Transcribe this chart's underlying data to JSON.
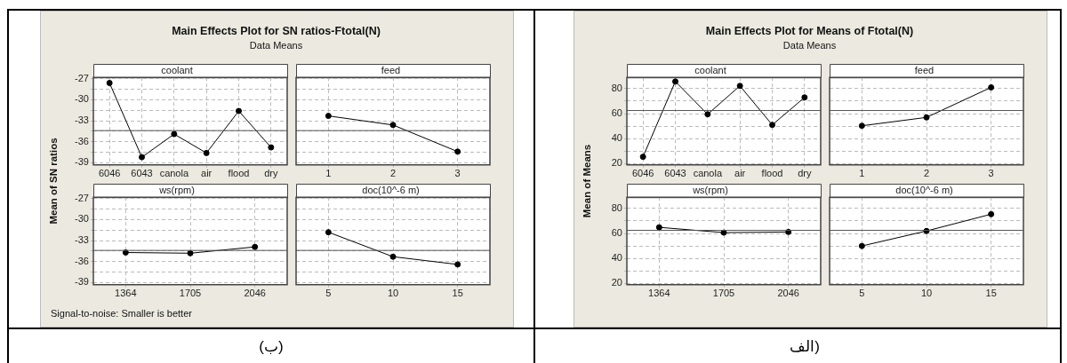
{
  "chart_data": [
    {
      "type": "line",
      "title": "Main Effects Plot for SN ratios-Ftotal(N)",
      "subtitle": "Data Means",
      "ylabel": "Mean of SN ratios",
      "annotations": [
        "Signal-to-noise: Smaller is better",
        "(ب)"
      ],
      "xlabel": "coolant",
      "categories": [
        "6046",
        "6043",
        "canola",
        "air",
        "flood",
        "dry"
      ],
      "values": [
        -27.6,
        -38.2,
        -34.9,
        -37.6,
        -31.6,
        -36.8
      ],
      "ylim": [
        -39.3,
        -26.8
      ],
      "yticks": [
        -39,
        {
          "value": -37.5,
          "label": null
        },
        -36,
        {
          "value": -34.5,
          "label": null
        },
        -33,
        {
          "value": -31.5,
          "label": null
        },
        -30,
        {
          "value": -28.5,
          "label": null
        },
        -27
      ],
      "ref_lines": [
        {
          "axis": "y",
          "value": -34.4
        }
      ],
      "grid": true,
      "marker": "circle"
    },
    {
      "type": "line",
      "xlabel": "feed",
      "categories": [
        "1",
        "2",
        "3"
      ],
      "values": [
        -32.3,
        -33.6,
        -37.4
      ],
      "ylim": [
        -39.3,
        -26.8
      ],
      "yticks": [
        -39,
        {
          "value": -37.5,
          "label": null
        },
        -36,
        {
          "value": -34.5,
          "label": null
        },
        -33,
        {
          "value": -31.5,
          "label": null
        },
        -30,
        {
          "value": -28.5,
          "label": null
        },
        -27
      ],
      "ref_lines": [
        {
          "axis": "y",
          "value": -34.4
        }
      ],
      "grid": true,
      "marker": "circle",
      "tick_labels": "x"
    },
    {
      "type": "line",
      "xlabel": "ws(rpm)",
      "categories": [
        "1364",
        "1705",
        "2046"
      ],
      "values": [
        -34.7,
        -34.8,
        -33.9
      ],
      "ylim": [
        -39.3,
        -26.8
      ],
      "yticks": [
        -39,
        {
          "value": -37.5,
          "label": null
        },
        -36,
        {
          "value": -34.5,
          "label": null
        },
        -33,
        {
          "value": -31.5,
          "label": null
        },
        -30,
        {
          "value": -28.5,
          "label": null
        },
        -27
      ],
      "ref_lines": [
        {
          "axis": "y",
          "value": -34.4
        }
      ],
      "grid": true,
      "marker": "circle"
    },
    {
      "type": "line",
      "xlabel": "doc(10^-6 m)",
      "categories": [
        "5",
        "10",
        "15"
      ],
      "values": [
        -31.8,
        -35.3,
        -36.4
      ],
      "ylim": [
        -39.3,
        -26.8
      ],
      "yticks": [
        -39,
        {
          "value": -37.5,
          "label": null
        },
        -36,
        {
          "value": -34.5,
          "label": null
        },
        -33,
        {
          "value": -31.5,
          "label": null
        },
        -30,
        {
          "value": -28.5,
          "label": null
        },
        -27
      ],
      "ref_lines": [
        {
          "axis": "y",
          "value": -34.4
        }
      ],
      "grid": true,
      "marker": "circle",
      "tick_labels": "x"
    },
    {
      "type": "line",
      "title": "Main Effects Plot for Means of Ftotal(N)",
      "subtitle": "Data Means",
      "ylabel": "Mean of Means",
      "annotations": [
        "الف)"
      ],
      "xlabel": "coolant",
      "categories": [
        "6046",
        "6043",
        "canola",
        "air",
        "flood",
        "dry"
      ],
      "values": [
        25.5,
        85.7,
        59.5,
        82.2,
        51,
        73
      ],
      "ylim": [
        19,
        89
      ],
      "yticks": [
        20,
        {
          "value": 30,
          "label": null
        },
        40,
        {
          "value": 50,
          "label": null
        },
        60,
        {
          "value": 70,
          "label": null
        },
        80
      ],
      "ref_lines": [
        {
          "axis": "y",
          "value": 62.5
        }
      ],
      "grid": true,
      "marker": "circle"
    },
    {
      "type": "line",
      "xlabel": "feed",
      "categories": [
        "1",
        "2",
        "3"
      ],
      "values": [
        50.3,
        57,
        81
      ],
      "ylim": [
        19,
        89
      ],
      "yticks": [
        20,
        {
          "value": 30,
          "label": null
        },
        40,
        {
          "value": 50,
          "label": null
        },
        60,
        {
          "value": 70,
          "label": null
        },
        80
      ],
      "ref_lines": [
        {
          "axis": "y",
          "value": 62.5
        }
      ],
      "grid": true,
      "marker": "circle",
      "tick_labels": "x"
    },
    {
      "type": "line",
      "xlabel": "ws(rpm)",
      "categories": [
        "1364",
        "1705",
        "2046"
      ],
      "values": [
        64.9,
        60.7,
        61.2
      ],
      "ylim": [
        19,
        89
      ],
      "yticks": [
        20,
        {
          "value": 30,
          "label": null
        },
        40,
        {
          "value": 50,
          "label": null
        },
        60,
        {
          "value": 70,
          "label": null
        },
        80
      ],
      "ref_lines": [
        {
          "axis": "y",
          "value": 62.5
        }
      ],
      "grid": true,
      "marker": "circle"
    },
    {
      "type": "line",
      "xlabel": "doc(10^-6 m)",
      "categories": [
        "5",
        "10",
        "15"
      ],
      "values": [
        50,
        62,
        75.4
      ],
      "ylim": [
        19,
        89
      ],
      "yticks": [
        20,
        {
          "value": 30,
          "label": null
        },
        40,
        {
          "value": 50,
          "label": null
        },
        60,
        {
          "value": 70,
          "label": null
        },
        80
      ],
      "ref_lines": [
        {
          "axis": "y",
          "value": 62.5
        }
      ],
      "grid": true,
      "marker": "circle",
      "tick_labels": "x"
    }
  ]
}
